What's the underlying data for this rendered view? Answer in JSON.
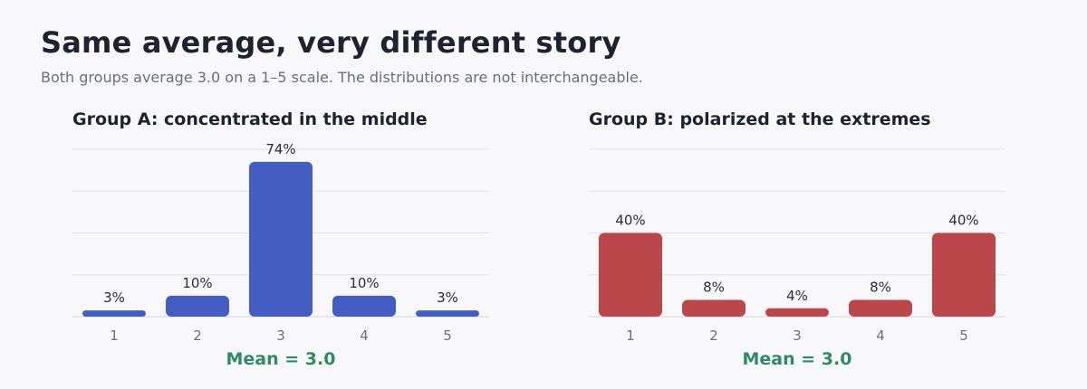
{
  "title": "Same average, very different story",
  "subtitle": "Both groups average 3.0 on a 1–5 scale. The distributions are not interchangeable.",
  "chart_data": [
    {
      "type": "bar",
      "title": "Group A: concentrated in the middle",
      "categories": [
        "1",
        "2",
        "3",
        "4",
        "5"
      ],
      "values": [
        3,
        10,
        74,
        10,
        3
      ],
      "value_labels": [
        "3%",
        "10%",
        "74%",
        "10%",
        "3%"
      ],
      "ylim": [
        0,
        80
      ],
      "grid": true,
      "color": "#445dc2",
      "mean_label": "Mean = 3.0"
    },
    {
      "type": "bar",
      "title": "Group B: polarized at the extremes",
      "categories": [
        "1",
        "2",
        "3",
        "4",
        "5"
      ],
      "values": [
        40,
        8,
        4,
        8,
        40
      ],
      "value_labels": [
        "40%",
        "8%",
        "4%",
        "8%",
        "40%"
      ],
      "ylim": [
        0,
        80
      ],
      "grid": true,
      "color": "#bc474a",
      "mean_label": "Mean = 3.0"
    }
  ]
}
